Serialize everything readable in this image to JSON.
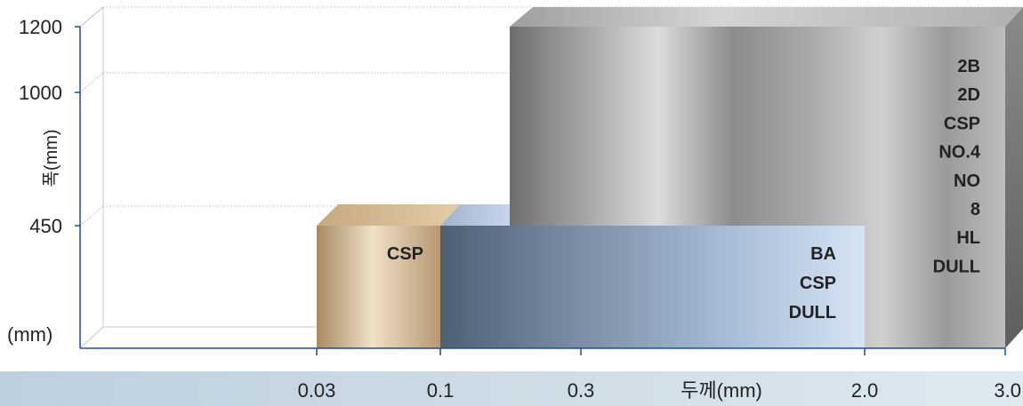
{
  "chart_data": {
    "type": "bar",
    "title": "",
    "xlabel": "두께(mm)",
    "ylabel": "폭(mm)",
    "y_unit_label": "(mm)",
    "x_ticks": [
      "0.03",
      "0.1",
      "0.3",
      "2.0",
      "3.0"
    ],
    "y_ticks": [
      "1200",
      "1000",
      "450"
    ],
    "grid": true,
    "bars": [
      {
        "name": "gold",
        "x_start": "0.03",
        "x_end": "0.1",
        "width_max": 450,
        "labels": [
          "CSP"
        ],
        "color": "#c9a978"
      },
      {
        "name": "blue",
        "x_start": "0.1",
        "x_end": "2.0",
        "width_max": 450,
        "labels": [
          "BA",
          "CSP",
          "DULL"
        ],
        "color": "#8fa8c4"
      },
      {
        "name": "steel",
        "x_start": "0.3",
        "x_end": "3.0",
        "width_max": 1200,
        "labels": [
          "2B",
          "2D",
          "CSP",
          "NO.4",
          "NO",
          "8",
          "HL",
          "DULL"
        ],
        "color": "#8a8a8a"
      }
    ]
  },
  "colors": {
    "axis": "#1f4aa0",
    "grid": "#b8b8b8",
    "band": "#cddbe6",
    "text": "#222222"
  }
}
